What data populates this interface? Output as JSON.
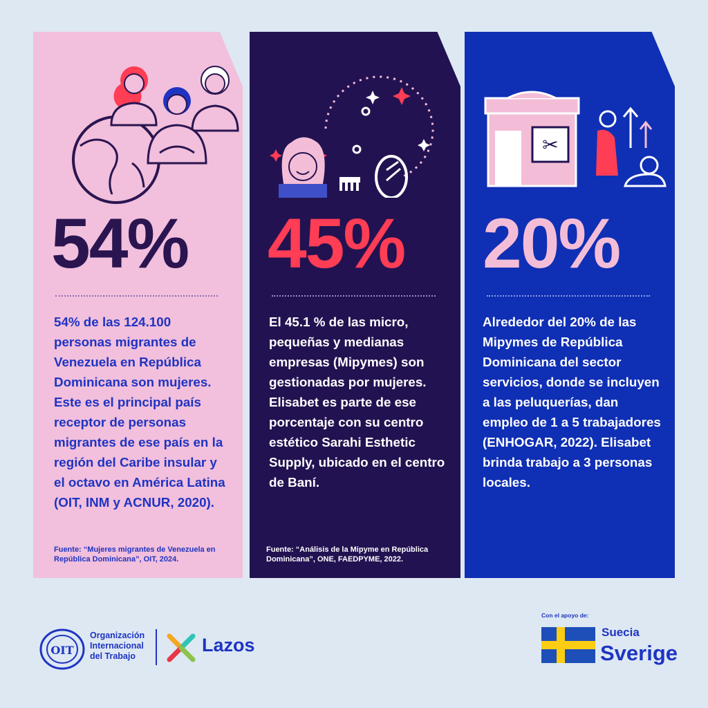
{
  "cards": [
    {
      "percent": "54%",
      "text": "54% de las 124.100 personas migrantes de Venezuela en República Dominicana son mujeres. Este es el principal país receptor de personas migrantes de ese país en la región del Caribe insular y el octavo en América Latina (OIT, INM y ACNUR, 2020).",
      "source": "Fuente: “Mujeres migrantes de Venezuela en República Dominicana”, OIT, 2024.",
      "icon": "migrant-women-globe-icon"
    },
    {
      "percent": "45%",
      "text": "El 45.1 % de las micro, pequeñas y medianas empresas (Mipymes) son gestionadas por mujeres. Elisabet es parte de ese porcentaje con su centro estético Sarahi Esthetic Supply, ubicado en el centro de Baní.",
      "source": "Fuente: “Análisis de la Mipyme en República Dominicana”, ONE, FAEDPYME, 2022.",
      "icon": "hairdresser-woman-icon"
    },
    {
      "percent": "20%",
      "text": "Alrededor del 20% de las Mipymes de República Dominicana del sector servicios, donde se incluyen a las peluquerías, dan empleo de 1 a 5 trabajadores (ENHOGAR, 2022). Elisabet brinda trabajo a 3 personas locales.",
      "icon": "barber-shop-icon"
    }
  ],
  "footer": {
    "oit_lines": [
      "Organización",
      "Internacional",
      "del Trabajo"
    ],
    "lazos": "Lazos",
    "apoyo": "Con el apoyo de:",
    "suecia": "Suecia",
    "sverige": "Sverige"
  },
  "colors": {
    "background": "#dde8f3",
    "card1": "#f2bfdc",
    "card2": "#231251",
    "card3": "#0f2fb4",
    "accent_red": "#ff3d55",
    "brand_blue": "#1e34c2"
  }
}
